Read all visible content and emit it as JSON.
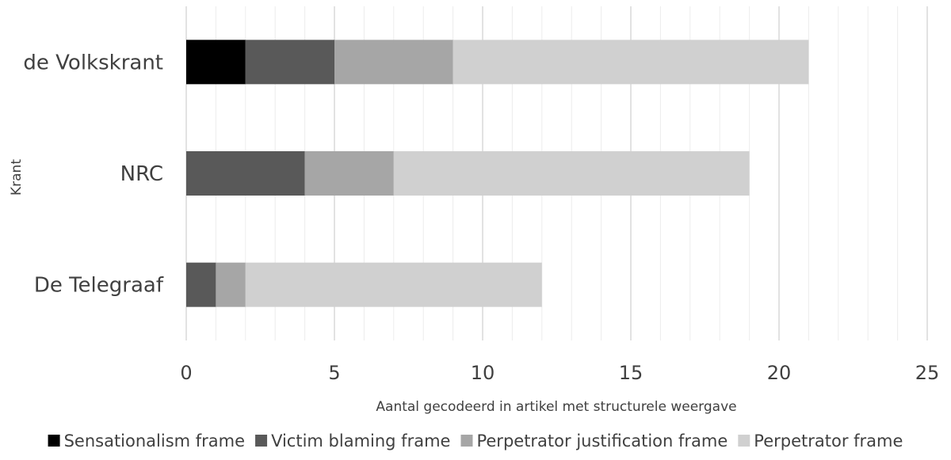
{
  "chart_data": {
    "type": "bar",
    "orientation": "horizontal",
    "stacked": true,
    "title": "",
    "xlabel": "Aantal gecodeerd in artikel met structurele weergave",
    "ylabel": "Krant",
    "xlim": [
      0,
      25
    ],
    "xticks": [
      0,
      5,
      10,
      15,
      20,
      25
    ],
    "minor_grid_step": 1,
    "grid": true,
    "legend_position": "bottom",
    "categories": [
      "de Volkskrant",
      "NRC",
      "De Telegraaf"
    ],
    "series": [
      {
        "name": "Sensationalism frame",
        "color": "#000000",
        "values": [
          2,
          0,
          0
        ]
      },
      {
        "name": "Victim blaming frame",
        "color": "#595959",
        "values": [
          3,
          4,
          1
        ]
      },
      {
        "name": "Perpetrator justification frame",
        "color": "#a6a6a6",
        "values": [
          4,
          3,
          1
        ]
      },
      {
        "name": "Perpetrator frame",
        "color": "#d0d0d0",
        "values": [
          12,
          12,
          10
        ]
      }
    ]
  }
}
